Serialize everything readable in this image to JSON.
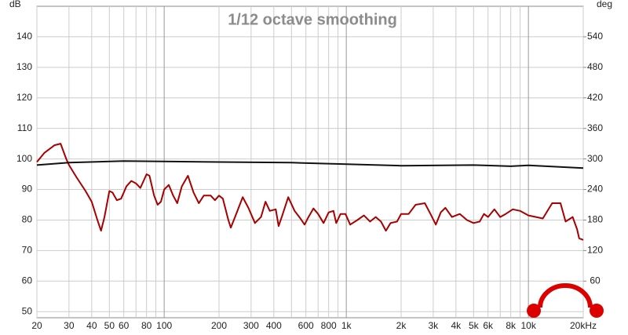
{
  "chart_data": {
    "type": "line",
    "title": "1/12 octave smoothing",
    "ylabel": "dB",
    "y2label": "deg",
    "xscale": "log",
    "grid": true,
    "xlim": [
      20,
      20000
    ],
    "ylim": [
      48,
      150
    ],
    "y2lim": [
      -12,
      600
    ],
    "xticks": [
      20,
      30,
      40,
      50,
      60,
      80,
      100,
      200,
      300,
      400,
      600,
      800,
      {
        "value": 1000,
        "label": "1k"
      },
      {
        "value": 2000,
        "label": "2k"
      },
      {
        "value": 3000,
        "label": "3k"
      },
      {
        "value": 4000,
        "label": "4k"
      },
      {
        "value": 5000,
        "label": "5k"
      },
      {
        "value": 6000,
        "label": "6k"
      },
      {
        "value": 8000,
        "label": "8k"
      },
      {
        "value": 10000,
        "label": "10k"
      },
      {
        "value": 20000,
        "label": "20kHz"
      }
    ],
    "xminorticks": [
      70,
      90,
      500,
      700,
      900,
      7000,
      9000
    ],
    "yticks": [
      50,
      60,
      70,
      80,
      90,
      100,
      110,
      120,
      130,
      140
    ],
    "y2ticks": [
      60,
      120,
      180,
      240,
      300,
      360,
      420,
      480,
      540
    ],
    "series": [
      {
        "color": "#a80000",
        "x": [
          20,
          22,
          25,
          27,
          29,
          30,
          33,
          37,
          40,
          43,
          45,
          47,
          50,
          52,
          55,
          58,
          62,
          66,
          70,
          74,
          80,
          83,
          88,
          92,
          96,
          100,
          106,
          112,
          118,
          125,
          135,
          145,
          155,
          165,
          180,
          190,
          200,
          210,
          225,
          232,
          245,
          270,
          290,
          315,
          340,
          360,
          380,
          410,
          425,
          445,
          480,
          520,
          560,
          590,
          620,
          660,
          700,
          750,
          800,
          850,
          880,
          930,
          990,
          1050,
          1150,
          1250,
          1350,
          1450,
          1550,
          1650,
          1750,
          1900,
          2000,
          2200,
          2400,
          2700,
          2900,
          3100,
          3300,
          3500,
          3800,
          4200,
          4600,
          5000,
          5400,
          5700,
          6000,
          6500,
          7000,
          7500,
          8200,
          9000,
          10000,
          11000,
          12000,
          13500,
          15000,
          16000,
          17500,
          18500,
          19000,
          20000
        ],
        "values": [
          99,
          102,
          104.5,
          105,
          100,
          98,
          94,
          89.5,
          86,
          80,
          76.5,
          81,
          89.5,
          89,
          86.5,
          87,
          91,
          92.8,
          92,
          90.5,
          95,
          94.5,
          88,
          85,
          86,
          90,
          91.5,
          88,
          85.5,
          91,
          94.5,
          89,
          85.5,
          88,
          88,
          86.5,
          88,
          87,
          80,
          77.5,
          81,
          87.5,
          84,
          79,
          81,
          86,
          83,
          83.5,
          78,
          81.5,
          87.5,
          83,
          80.5,
          78.5,
          81,
          83.8,
          82,
          79,
          82.5,
          83,
          79,
          82,
          82,
          78.5,
          80,
          81.5,
          79.5,
          81,
          79.5,
          76.5,
          79,
          79.5,
          82,
          82,
          85,
          85.5,
          82,
          78.5,
          82.5,
          84,
          81,
          82,
          80,
          79,
          79.5,
          82,
          81,
          83.5,
          81,
          82,
          83.5,
          83,
          81.5,
          81,
          80.5,
          85.5,
          85.5,
          79.5,
          81,
          77,
          74,
          73.5
        ]
      },
      {
        "color": "#111111",
        "x": [
          20,
          30,
          60,
          200,
          500,
          1000,
          2000,
          5000,
          8000,
          10000,
          20000
        ],
        "values": [
          98,
          98.8,
          99.3,
          99,
          98.8,
          98.3,
          97.8,
          98,
          97.6,
          97.9,
          97
        ]
      }
    ]
  }
}
